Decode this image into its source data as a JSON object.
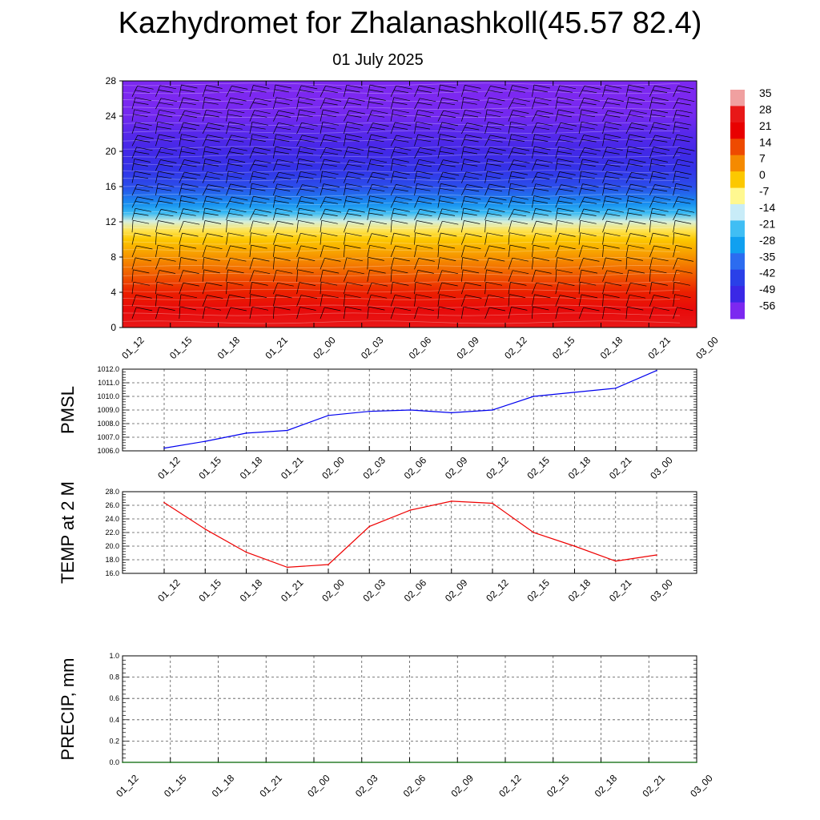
{
  "title": "Kazhydromet for Zhalanashkoll(45.57 82.4)",
  "subtitle": "01 July 2025",
  "chart_data": [
    {
      "type": "heatmap",
      "name": "upper-air cross-section",
      "ylim": [
        0,
        28
      ],
      "yticks": [
        "0",
        "4",
        "8",
        "12",
        "16",
        "20",
        "24",
        "28"
      ],
      "xticks": [
        "01_12",
        "01_15",
        "01_18",
        "01_21",
        "02_00",
        "02_03",
        "02_06",
        "02_09",
        "02_12",
        "02_15",
        "02_18",
        "02_21",
        "03_00"
      ],
      "levels": [
        0,
        2,
        4,
        6,
        8,
        10,
        11,
        12,
        13,
        14,
        16,
        18,
        20,
        22,
        24,
        26,
        28
      ],
      "temperature": [
        28,
        24,
        18,
        12,
        6,
        0,
        -4,
        -12,
        -22,
        -30,
        -40,
        -46,
        -50,
        -52,
        -55,
        -56,
        -58
      ],
      "colorbar": {
        "labels": [
          "35",
          "28",
          "21",
          "14",
          "7",
          "0",
          "-7",
          "-14",
          "-21",
          "-28",
          "-35",
          "-42",
          "-49",
          "-56"
        ],
        "values": [
          35,
          28,
          21,
          14,
          7,
          0,
          -7,
          -14,
          -21,
          -28,
          -35,
          -42,
          -49,
          -56
        ],
        "colors": [
          "#f0a0a0",
          "#e81818",
          "#e80000",
          "#ee4a00",
          "#f58a00",
          "#fcc800",
          "#fff890",
          "#c8ecf8",
          "#40bef4",
          "#10a0f0",
          "#2c6cf0",
          "#2a40e8",
          "#3a28e6",
          "#7c28f0"
        ]
      },
      "wind_barbs": "present at every time step and level"
    },
    {
      "type": "line",
      "ylabel": "PMSL",
      "ylim": [
        1006.0,
        1012.0
      ],
      "yticks": [
        "1006.0",
        "1007.0",
        "1008.0",
        "1009.0",
        "1010.0",
        "1011.0",
        "1012.0"
      ],
      "xticks": [
        "01_12",
        "01_15",
        "01_18",
        "01_21",
        "02_00",
        "02_03",
        "02_06",
        "02_09",
        "02_12",
        "02_15",
        "02_18",
        "02_21",
        "03_00"
      ],
      "series": [
        {
          "color": "#0000ee",
          "values": [
            1006.2,
            1006.7,
            1007.3,
            1007.5,
            1008.6,
            1008.9,
            1009.0,
            1008.8,
            1009.0,
            1010.0,
            1010.3,
            1010.6,
            1011.9
          ]
        }
      ],
      "grid": true
    },
    {
      "type": "line",
      "ylabel": "TEMP at 2 M",
      "ylim": [
        16.0,
        28.0
      ],
      "yticks": [
        "16.0",
        "18.0",
        "20.0",
        "22.0",
        "24.0",
        "26.0",
        "28.0"
      ],
      "xticks": [
        "01_12",
        "01_15",
        "01_18",
        "01_21",
        "02_00",
        "02_03",
        "02_06",
        "02_09",
        "02_12",
        "02_15",
        "02_18",
        "02_21",
        "03_00"
      ],
      "series": [
        {
          "color": "#ee0000",
          "values": [
            26.4,
            22.5,
            19.1,
            16.9,
            17.3,
            22.9,
            25.3,
            26.6,
            26.3,
            22.0,
            20.0,
            17.8,
            18.7
          ]
        }
      ],
      "grid": true
    },
    {
      "type": "line",
      "ylabel": "PRECIP, mm",
      "ylim": [
        0.0,
        1.0
      ],
      "yticks": [
        "0.0",
        "0.2",
        "0.4",
        "0.6",
        "0.8",
        "1.0"
      ],
      "xticks": [
        "01_12",
        "01_15",
        "01_18",
        "01_21",
        "02_00",
        "02_03",
        "02_06",
        "02_09",
        "02_12",
        "02_15",
        "02_18",
        "02_21",
        "03_00"
      ],
      "series": [
        {
          "color": "#006400",
          "values": [
            0,
            0,
            0,
            0,
            0,
            0,
            0,
            0,
            0,
            0,
            0,
            0,
            0
          ]
        }
      ],
      "grid": true
    }
  ]
}
